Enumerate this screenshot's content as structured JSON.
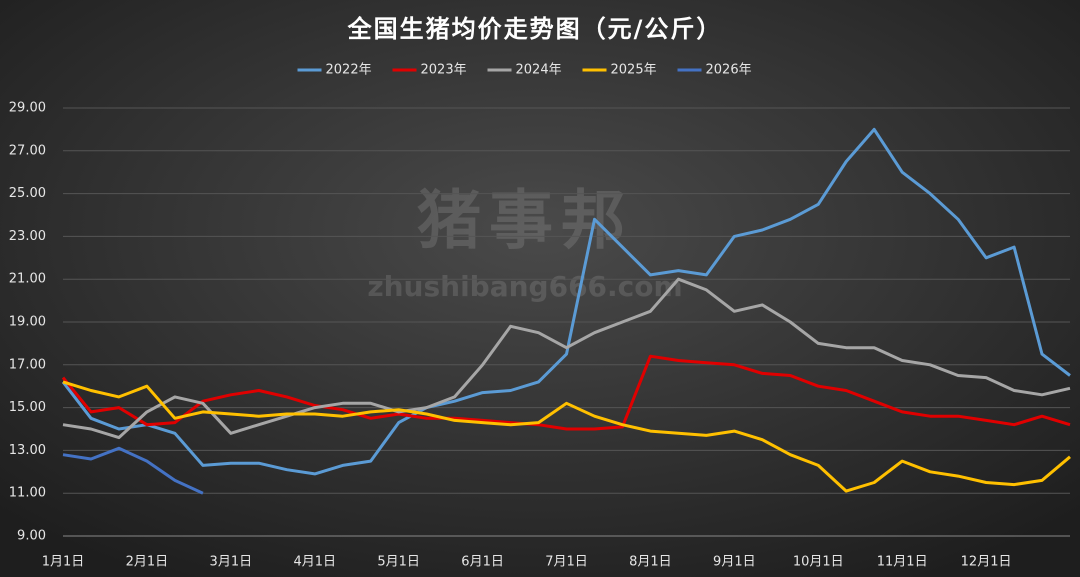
{
  "chart_data": {
    "type": "line",
    "title": "全国生猪均价走势图（元/公斤）",
    "watermark": "猪事邦",
    "watermark_url": "zhushibang666.com",
    "categories": [
      "1月1日",
      null,
      null,
      "2月1日",
      null,
      null,
      "3月1日",
      null,
      null,
      "4月1日",
      null,
      null,
      "5月1日",
      null,
      null,
      "6月1日",
      null,
      null,
      "7月1日",
      null,
      null,
      "8月1日",
      null,
      null,
      "9月1日",
      null,
      null,
      "10月1日",
      null,
      null,
      "11月1日",
      null,
      null,
      "12月1日",
      null,
      null,
      null
    ],
    "ylim": [
      9,
      29
    ],
    "yticks": [
      {
        "value": 9,
        "label": "9.00"
      },
      {
        "value": 11,
        "label": "11.00"
      },
      {
        "value": 13,
        "label": "13.00"
      },
      {
        "value": 15,
        "label": "15.00"
      },
      {
        "value": 17,
        "label": "17.00"
      },
      {
        "value": 19,
        "label": "19.00"
      },
      {
        "value": 21,
        "label": "21.00"
      },
      {
        "value": 23,
        "label": "23.00"
      },
      {
        "value": 25,
        "label": "25.00"
      },
      {
        "value": 27,
        "label": "27.00"
      },
      {
        "value": 29,
        "label": "29.00"
      }
    ],
    "grid": true,
    "legend": "top",
    "series": [
      {
        "name": "2022年",
        "color": "#5b9bd5",
        "values": [
          16.2,
          14.5,
          14.0,
          14.2,
          13.8,
          12.3,
          12.4,
          12.4,
          12.1,
          11.9,
          12.3,
          12.5,
          14.3,
          15.0,
          15.3,
          15.7,
          15.8,
          16.2,
          17.5,
          23.8,
          22.5,
          21.2,
          21.4,
          21.2,
          23.0,
          23.3,
          23.8,
          24.5,
          26.5,
          28.0,
          26.0,
          25.0,
          23.8,
          22.0,
          22.5,
          17.5,
          16.5
        ]
      },
      {
        "name": "2023年",
        "color": "#e00000",
        "values": [
          16.4,
          14.8,
          15.0,
          14.2,
          14.3,
          15.3,
          15.6,
          15.8,
          15.5,
          15.1,
          14.9,
          14.5,
          14.7,
          14.5,
          14.5,
          14.4,
          14.3,
          14.2,
          14.0,
          14.0,
          14.1,
          17.4,
          17.2,
          17.1,
          17.0,
          16.6,
          16.5,
          16.0,
          15.8,
          15.3,
          14.8,
          14.6,
          14.6,
          14.4,
          14.2,
          14.6,
          14.2
        ]
      },
      {
        "name": "2024年",
        "color": "#a6a6a6",
        "values": [
          14.2,
          14.0,
          13.6,
          14.8,
          15.5,
          15.2,
          13.8,
          14.2,
          14.6,
          15.0,
          15.2,
          15.2,
          14.8,
          15.0,
          15.5,
          17.0,
          18.8,
          18.5,
          17.8,
          18.5,
          19.0,
          19.5,
          21.0,
          20.5,
          19.5,
          19.8,
          19.0,
          18.0,
          17.8,
          17.8,
          17.2,
          17.0,
          16.5,
          16.4,
          15.8,
          15.6,
          15.9
        ]
      },
      {
        "name": "2025年",
        "color": "#ffc000",
        "values": [
          16.2,
          15.8,
          15.5,
          16.0,
          14.5,
          14.8,
          14.7,
          14.6,
          14.7,
          14.7,
          14.6,
          14.8,
          14.9,
          14.7,
          14.4,
          14.3,
          14.2,
          14.3,
          15.2,
          14.6,
          14.2,
          13.9,
          13.8,
          13.7,
          13.9,
          13.5,
          12.8,
          12.3,
          11.1,
          11.5,
          12.5,
          12.0,
          11.8,
          11.5,
          11.4,
          11.6,
          12.7
        ]
      },
      {
        "name": "2026年",
        "color": "#4472c4",
        "values": [
          12.8,
          12.6,
          13.1,
          12.5,
          11.6,
          11.0,
          null,
          null,
          null,
          null,
          null,
          null,
          null,
          null,
          null,
          null,
          null,
          null,
          null,
          null,
          null,
          null,
          null,
          null,
          null,
          null,
          null,
          null,
          null,
          null,
          null,
          null,
          null,
          null,
          null,
          null,
          null
        ]
      }
    ]
  }
}
